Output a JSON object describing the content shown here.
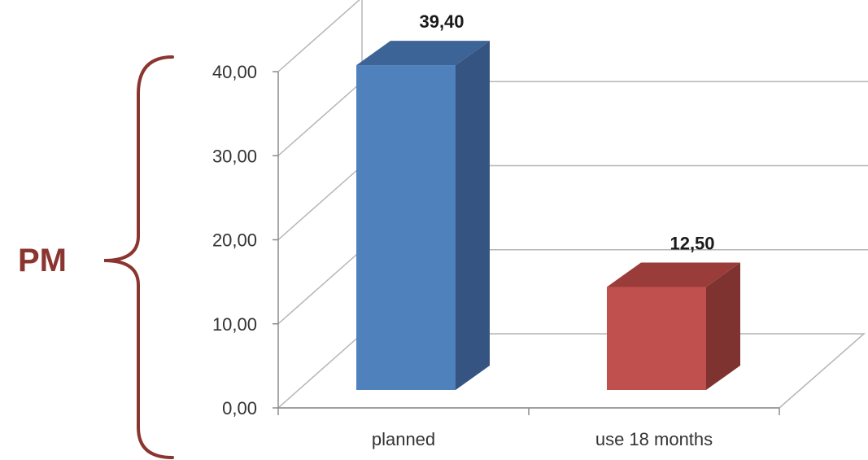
{
  "side_label": "PM",
  "colors": {
    "bracket": "#8b3530",
    "grid": "#b5b5b5",
    "axis_text": "#333333"
  },
  "chart_data": {
    "type": "bar",
    "style": "3d-column",
    "categories": [
      "planned",
      "use 18 months"
    ],
    "values": [
      39.4,
      12.5
    ],
    "value_labels": [
      "39,40",
      "12,50"
    ],
    "tick_labels": [
      "0,00",
      "10,00",
      "20,00",
      "30,00",
      "40,00"
    ],
    "ylim": [
      0,
      40
    ],
    "grid": true,
    "legend": "none",
    "bar_colors": [
      {
        "front": "#4f81bd",
        "side": "#355481",
        "top": "#3d6497"
      },
      {
        "front": "#c0504d",
        "side": "#7f3331",
        "top": "#9a3d3a"
      }
    ]
  }
}
